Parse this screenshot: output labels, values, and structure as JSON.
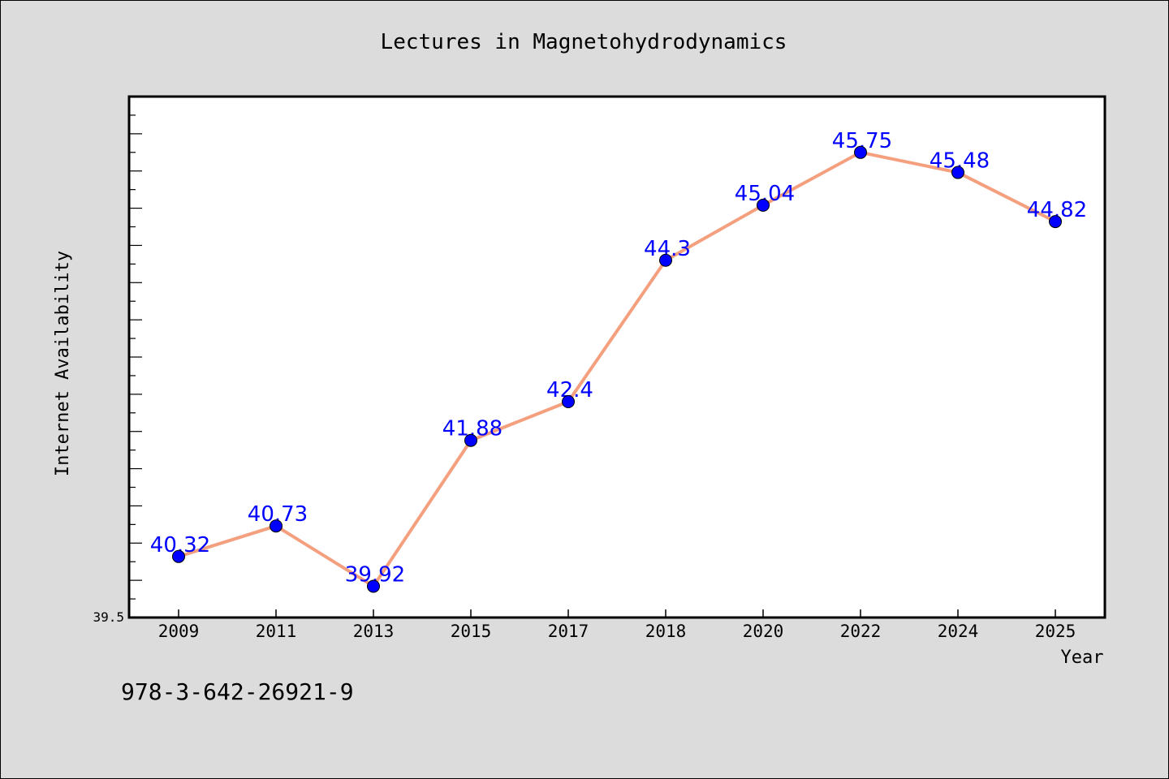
{
  "chart_data": {
    "type": "line",
    "title": "Lectures in Magnetohydrodynamics",
    "xlabel": "Year",
    "ylabel": "Internet Availability",
    "categories": [
      "2009",
      "2011",
      "2013",
      "2015",
      "2017",
      "2018",
      "2020",
      "2022",
      "2024",
      "2025"
    ],
    "series": [
      {
        "values": [
          40.32,
          40.73,
          39.92,
          41.88,
          42.4,
          44.3,
          45.04,
          45.75,
          45.48,
          44.82
        ],
        "labels": [
          "40.32",
          "40.73",
          "39.92",
          "41.88",
          "42.4",
          "44.3",
          "45.04",
          "45.75",
          "45.48",
          "44.82"
        ]
      }
    ],
    "ylim": [
      39.5,
      46.5
    ],
    "yticks_labeled": [
      "39.5"
    ],
    "grid": false,
    "legend": "none",
    "colors": {
      "line": "#f4a07f",
      "marker": "#0000ff",
      "data_label": "#0000ff",
      "plot_background": "#ffffff",
      "figure_background": "#dcdcdc"
    }
  },
  "footer": {
    "isbn": "978-3-642-26921-9"
  }
}
